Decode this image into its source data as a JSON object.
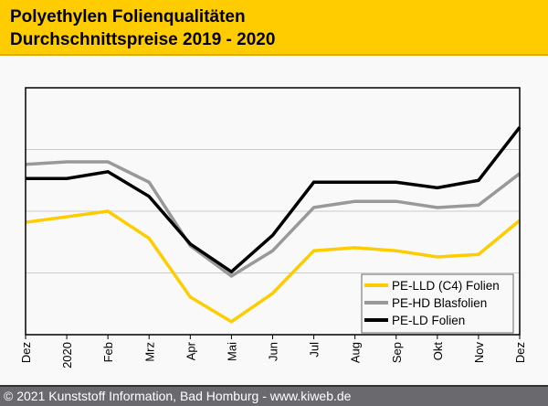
{
  "header": {
    "title": "Polyethylen Folienqualitäten",
    "subtitle": "Durchschnittspreise 2019 - 2020"
  },
  "footer": {
    "text": "© 2021 Kunststoff Information, Bad Homburg - www.kiweb.de"
  },
  "chart_data": {
    "type": "line",
    "title": "Polyethylen Folienqualitäten Durchschnittspreise 2019 - 2020",
    "xlabel": "",
    "ylabel": "",
    "categories": [
      "Dez",
      "2020",
      "Feb",
      "Mrz",
      "Apr",
      "Mai",
      "Jun",
      "Jul",
      "Aug",
      "Sep",
      "Okt",
      "Nov",
      "Dez"
    ],
    "ylim": [
      0,
      4
    ],
    "grid": true,
    "legend_position": "bottom-right",
    "series": [
      {
        "name": "PE-LLD (C4) Folien",
        "color": "#ffcc00",
        "values": [
          1.82,
          1.91,
          2.0,
          1.56,
          0.61,
          0.21,
          0.67,
          1.36,
          1.41,
          1.36,
          1.26,
          1.3,
          1.85
        ]
      },
      {
        "name": "PE-HD Blasfolien",
        "color": "#999999",
        "values": [
          2.76,
          2.8,
          2.8,
          2.47,
          1.44,
          0.95,
          1.36,
          2.06,
          2.16,
          2.16,
          2.06,
          2.1,
          2.61
        ]
      },
      {
        "name": "PE-LD Folien",
        "color": "#000000",
        "values": [
          2.53,
          2.53,
          2.64,
          2.24,
          1.47,
          1.02,
          1.61,
          2.47,
          2.47,
          2.47,
          2.38,
          2.5,
          3.36
        ]
      }
    ]
  }
}
